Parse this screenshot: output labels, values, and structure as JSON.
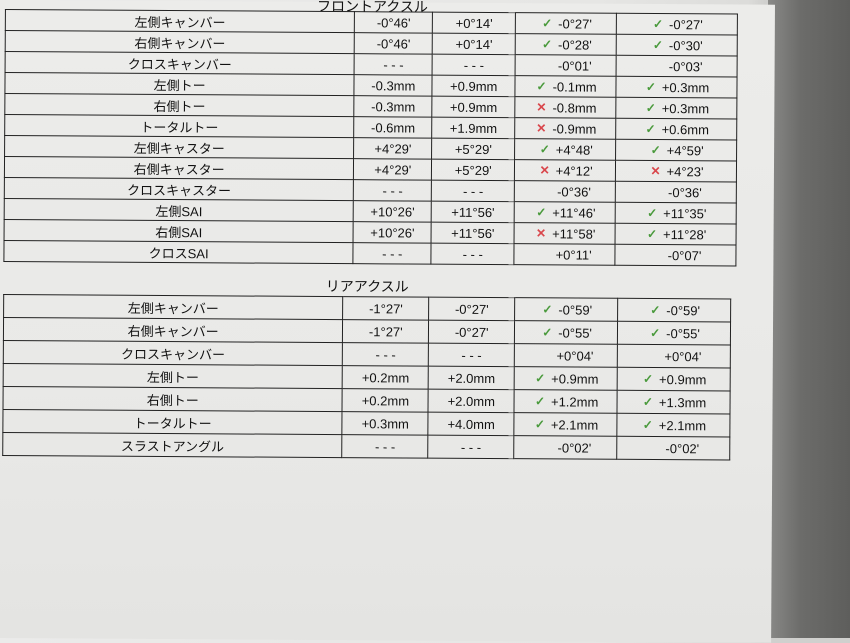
{
  "front": {
    "title": "フロントアクスル",
    "rows": [
      {
        "label": "左側キャンバー",
        "min": "-0°46'",
        "max": "+0°14'",
        "before": {
          "status": "ok",
          "value": "-0°27'"
        },
        "after": {
          "status": "ok",
          "value": "-0°27'"
        }
      },
      {
        "label": "右側キャンバー",
        "min": "-0°46'",
        "max": "+0°14'",
        "before": {
          "status": "ok",
          "value": "-0°28'"
        },
        "after": {
          "status": "ok",
          "value": "-0°30'"
        }
      },
      {
        "label": "クロスキャンバー",
        "min": "- - -",
        "max": "- - -",
        "before": {
          "status": "",
          "value": "-0°01'"
        },
        "after": {
          "status": "",
          "value": "-0°03'"
        }
      },
      {
        "label": "左側トー",
        "min": "-0.3mm",
        "max": "+0.9mm",
        "before": {
          "status": "ok",
          "value": "-0.1mm"
        },
        "after": {
          "status": "ok",
          "value": "+0.3mm"
        }
      },
      {
        "label": "右側トー",
        "min": "-0.3mm",
        "max": "+0.9mm",
        "before": {
          "status": "ng",
          "value": "-0.8mm"
        },
        "after": {
          "status": "ok",
          "value": "+0.3mm"
        }
      },
      {
        "label": "トータルトー",
        "min": "-0.6mm",
        "max": "+1.9mm",
        "before": {
          "status": "ng",
          "value": "-0.9mm"
        },
        "after": {
          "status": "ok",
          "value": "+0.6mm"
        }
      },
      {
        "label": "左側キャスター",
        "min": "+4°29'",
        "max": "+5°29'",
        "before": {
          "status": "ok",
          "value": "+4°48'"
        },
        "after": {
          "status": "ok",
          "value": "+4°59'"
        }
      },
      {
        "label": "右側キャスター",
        "min": "+4°29'",
        "max": "+5°29'",
        "before": {
          "status": "ng",
          "value": "+4°12'"
        },
        "after": {
          "status": "ng",
          "value": "+4°23'"
        }
      },
      {
        "label": "クロスキャスター",
        "min": "- - -",
        "max": "- - -",
        "before": {
          "status": "",
          "value": "-0°36'"
        },
        "after": {
          "status": "",
          "value": "-0°36'"
        }
      },
      {
        "label": "左側SAI",
        "min": "+10°26'",
        "max": "+11°56'",
        "before": {
          "status": "ok",
          "value": "+11°46'"
        },
        "after": {
          "status": "ok",
          "value": "+11°35'"
        }
      },
      {
        "label": "右側SAI",
        "min": "+10°26'",
        "max": "+11°56'",
        "before": {
          "status": "ng",
          "value": "+11°58'"
        },
        "after": {
          "status": "ok",
          "value": "+11°28'"
        }
      },
      {
        "label": "クロスSAI",
        "min": "- - -",
        "max": "- - -",
        "before": {
          "status": "",
          "value": "+0°11'"
        },
        "after": {
          "status": "",
          "value": "-0°07'"
        }
      }
    ]
  },
  "rear": {
    "title": "リアアクスル",
    "rows": [
      {
        "label": "左側キャンバー",
        "min": "-1°27'",
        "max": "-0°27'",
        "before": {
          "status": "ok",
          "value": "-0°59'"
        },
        "after": {
          "status": "ok",
          "value": "-0°59'"
        }
      },
      {
        "label": "右側キャンバー",
        "min": "-1°27'",
        "max": "-0°27'",
        "before": {
          "status": "ok",
          "value": "-0°55'"
        },
        "after": {
          "status": "ok",
          "value": "-0°55'"
        }
      },
      {
        "label": "クロスキャンバー",
        "min": "- - -",
        "max": "- - -",
        "before": {
          "status": "",
          "value": "+0°04'"
        },
        "after": {
          "status": "",
          "value": "+0°04'"
        }
      },
      {
        "label": "左側トー",
        "min": "+0.2mm",
        "max": "+2.0mm",
        "before": {
          "status": "ok",
          "value": "+0.9mm"
        },
        "after": {
          "status": "ok",
          "value": "+0.9mm"
        }
      },
      {
        "label": "右側トー",
        "min": "+0.2mm",
        "max": "+2.0mm",
        "before": {
          "status": "ok",
          "value": "+1.2mm"
        },
        "after": {
          "status": "ok",
          "value": "+1.3mm"
        }
      },
      {
        "label": "トータルトー",
        "min": "+0.3mm",
        "max": "+4.0mm",
        "before": {
          "status": "ok",
          "value": "+2.1mm"
        },
        "after": {
          "status": "ok",
          "value": "+2.1mm"
        }
      },
      {
        "label": "スラストアングル",
        "min": "- - -",
        "max": "- - -",
        "before": {
          "status": "",
          "value": "-0°02'"
        },
        "after": {
          "status": "",
          "value": "-0°02'"
        }
      }
    ]
  },
  "icons": {
    "ok": "check-icon",
    "ng": "cross-icon"
  },
  "colors": {
    "ok": "#4a9a3c",
    "ng": "#d9464b"
  }
}
